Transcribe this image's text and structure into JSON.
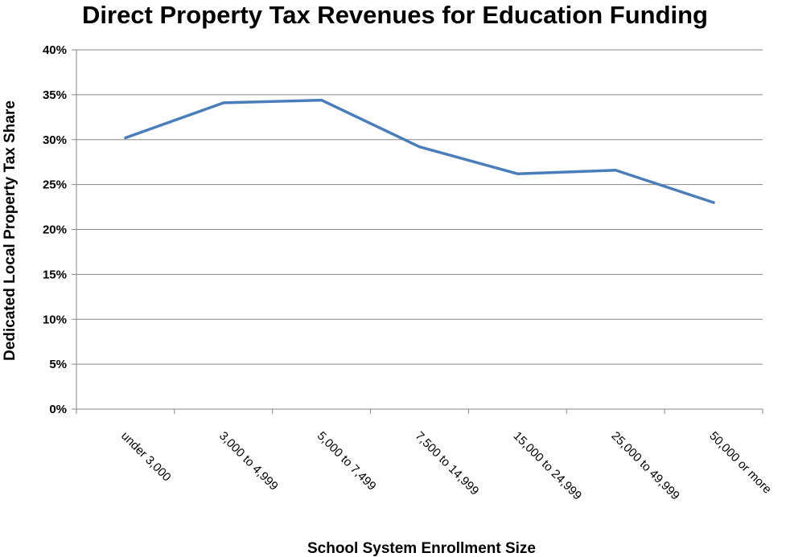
{
  "chart_data": {
    "type": "line",
    "title": "Direct Property Tax Revenues for Education Funding",
    "xlabel": "School System Enrollment Size",
    "ylabel": "Dedicated Local Property Tax Share",
    "categories": [
      "under 3,000",
      "3,000 to 4,999",
      "5,000 to 7,499",
      "7,500 to 14,999",
      "15,000 to 24,999",
      "25,000 to 49,999",
      "50,000 or more"
    ],
    "series": [
      {
        "values": [
          30.2,
          34.1,
          34.4,
          29.2,
          26.2,
          26.6,
          23.0
        ],
        "color": "#4a7ebb"
      }
    ],
    "ylim": [
      0,
      40
    ],
    "yticks": [
      "0%",
      "5%",
      "10%",
      "15%",
      "20%",
      "25%",
      "30%",
      "35%",
      "40%"
    ],
    "ytick_values": [
      0,
      5,
      10,
      15,
      20,
      25,
      30,
      35,
      40
    ],
    "grid": true,
    "gridline_color": "#868686"
  }
}
